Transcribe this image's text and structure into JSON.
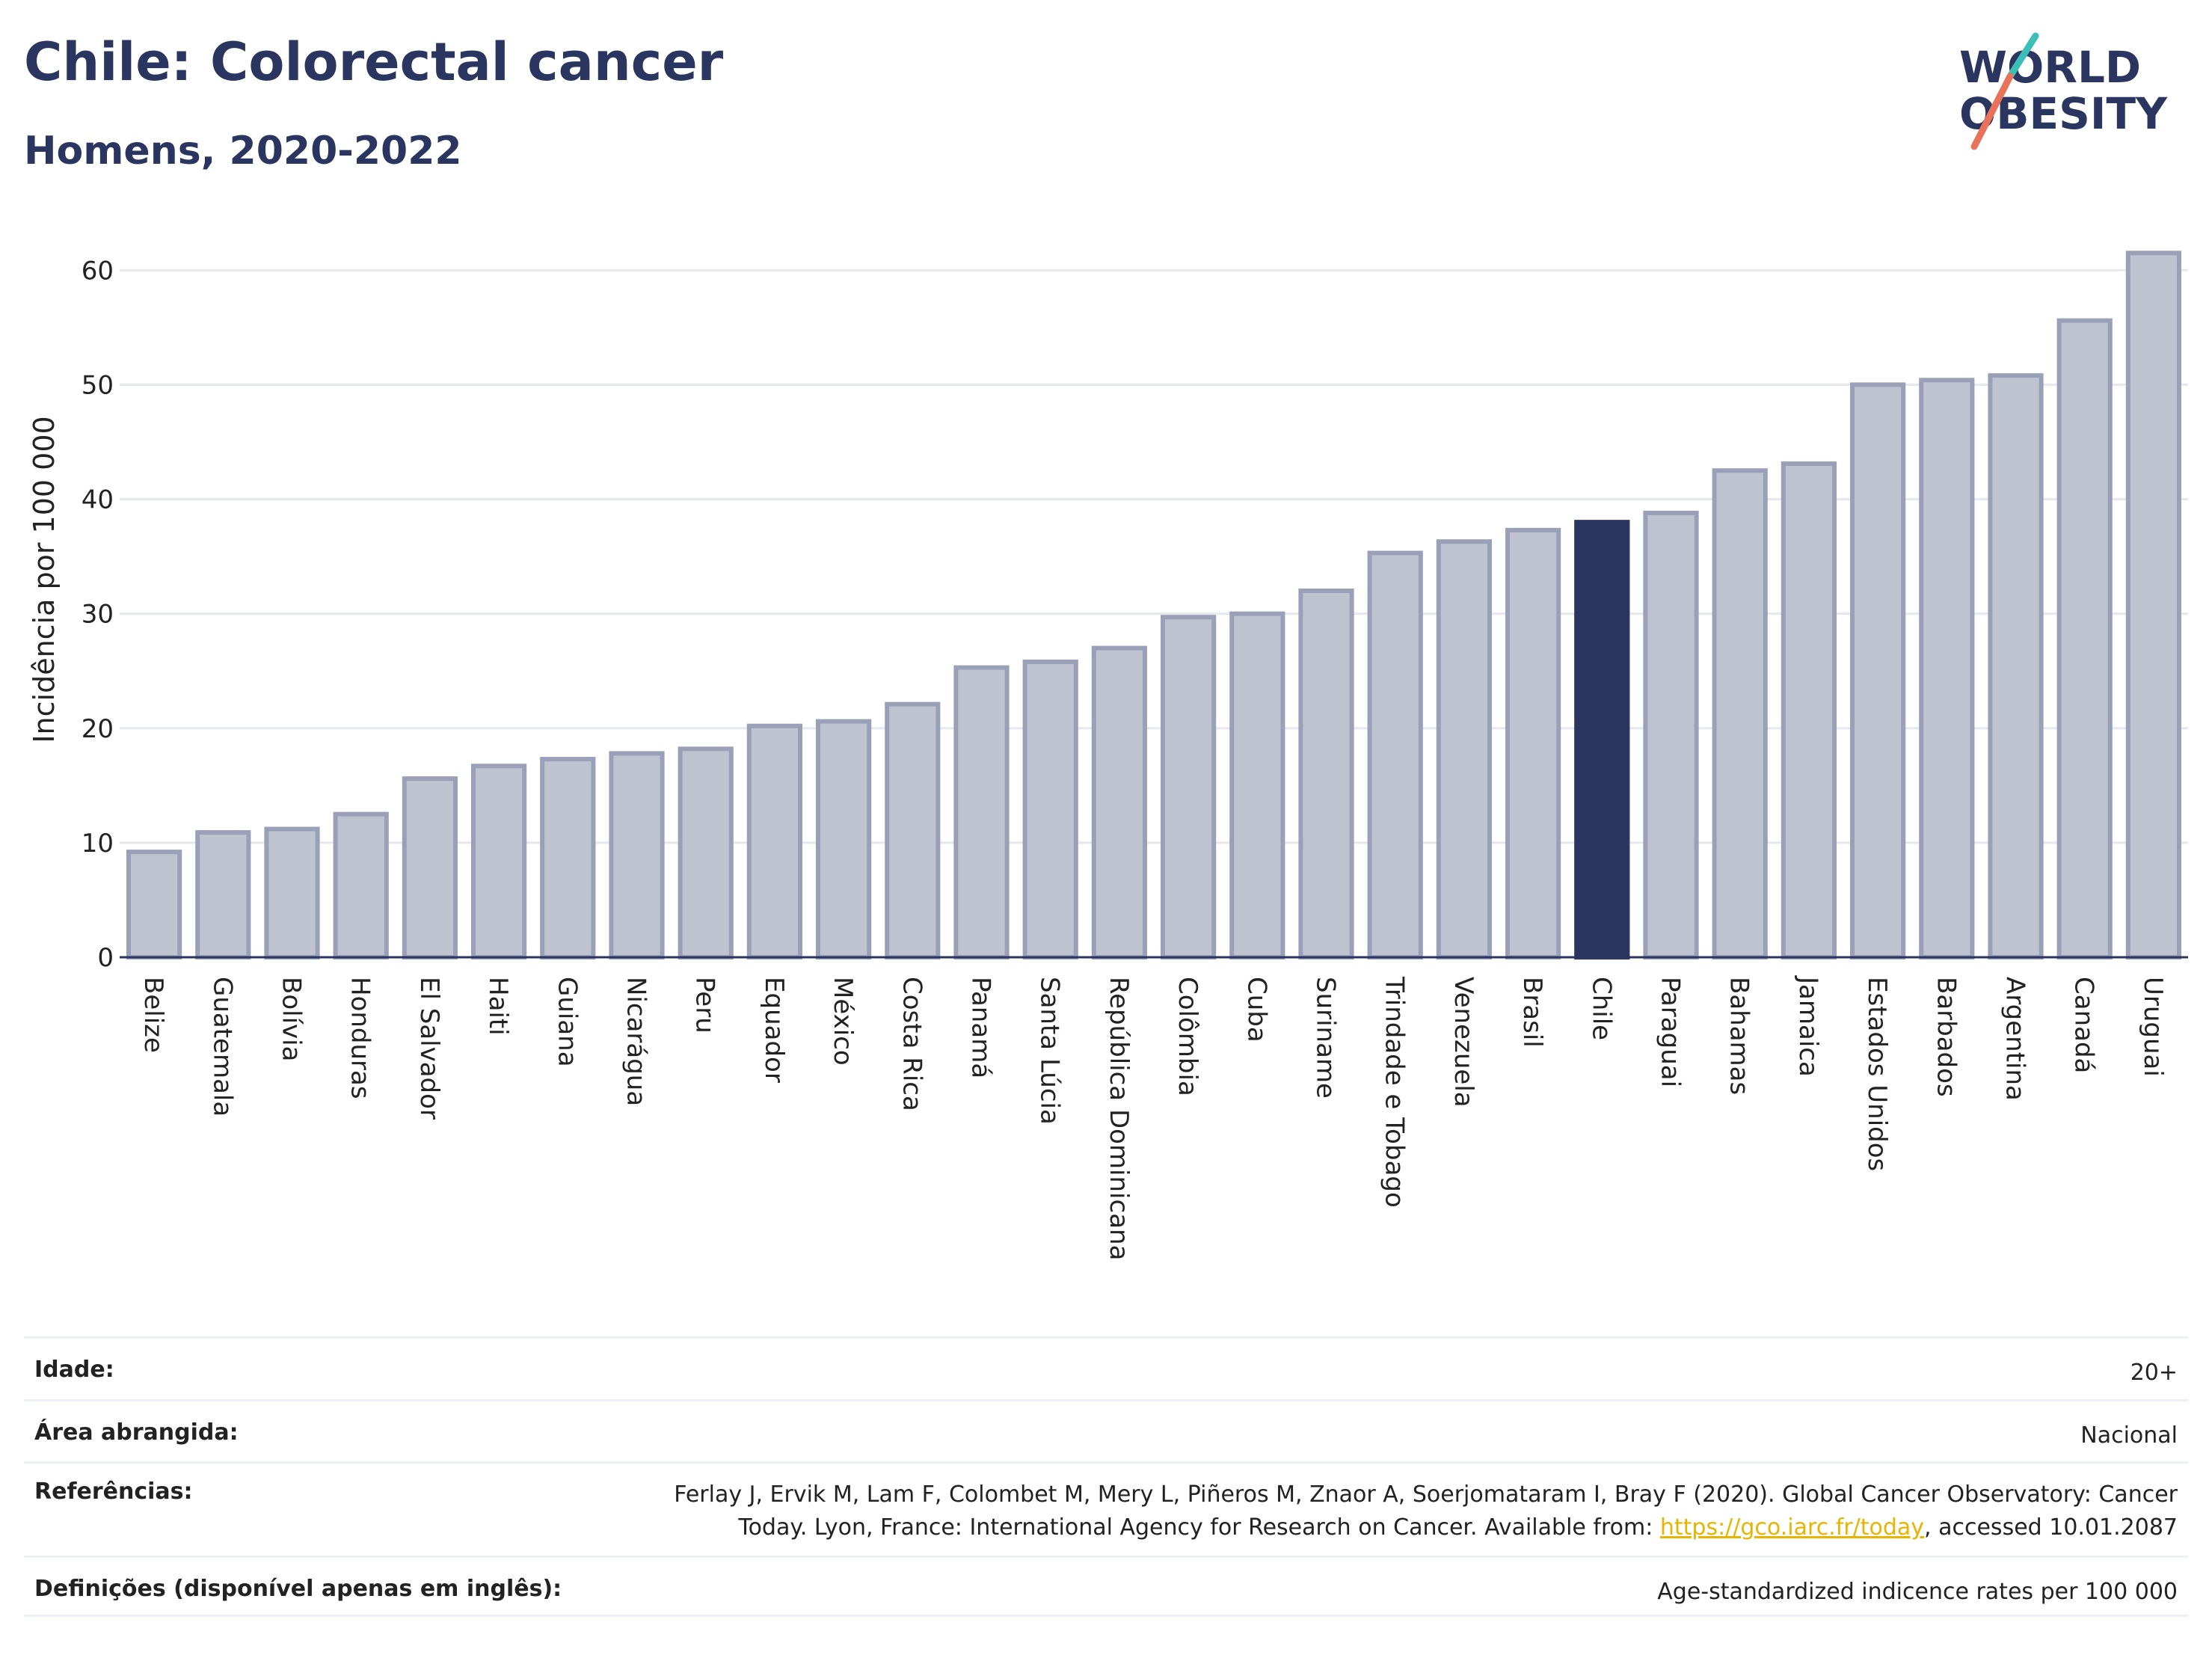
{
  "header": {
    "title": "Chile: Colorectal cancer",
    "subtitle": "Homens, 2020-2022"
  },
  "logo": {
    "line1": "WORLD",
    "line2": "OBESITY",
    "accent_color": "#e8735a",
    "accent_color_2": "#3dbfb8"
  },
  "colors": {
    "bar": "#bfc3d0",
    "bar_stroke": "#9aa0b8",
    "highlight": "#2a3560",
    "grid": "#e6e8ee"
  },
  "chart_data": {
    "type": "bar",
    "title": "Chile: Colorectal cancer",
    "subtitle": "Homens, 2020-2022",
    "ylabel": "Incidência por 100 000",
    "xlabel": "",
    "ylim": [
      0,
      64
    ],
    "yticks": [
      0,
      10,
      20,
      30,
      40,
      50,
      60
    ],
    "grid": true,
    "highlight": "Chile",
    "categories": [
      "Belize",
      "Guatemala",
      "Bolívia",
      "Honduras",
      "El Salvador",
      "Haiti",
      "Guiana",
      "Nicarágua",
      "Peru",
      "Equador",
      "México",
      "Costa Rica",
      "Panamá",
      "Santa Lúcia",
      "República Dominicana",
      "Colômbia",
      "Cuba",
      "Suriname",
      "Trindade e Tobago",
      "Venezuela",
      "Brasil",
      "Chile",
      "Paraguai",
      "Bahamas",
      "Jamaica",
      "Estados Unidos",
      "Barbados",
      "Argentina",
      "Canadá",
      "Uruguai"
    ],
    "values": [
      9.2,
      10.9,
      11.2,
      12.5,
      15.6,
      16.7,
      17.3,
      17.8,
      18.2,
      20.2,
      20.6,
      22.1,
      25.3,
      25.8,
      27.0,
      29.7,
      30.0,
      32.0,
      35.3,
      36.3,
      37.3,
      38.0,
      38.8,
      42.5,
      43.1,
      50.0,
      50.4,
      50.8,
      55.6,
      61.5
    ]
  },
  "info": {
    "rows": [
      {
        "key": "Idade:",
        "value": "20+"
      },
      {
        "key": "Área abrangida:",
        "value": "Nacional"
      },
      {
        "key": "Referências:",
        "value_line1": "Ferlay J, Ervik M, Lam F, Colombet M, Mery L, Piñeros M, Znaor A, Soerjomataram I, Bray F (2020). Global Cancer Observatory: Cancer",
        "value_pre": "Today. Lyon, France: International Agency for Research on Cancer. Available from: ",
        "link": "https://gco.iarc.fr/today",
        "value_post": ", accessed 10.01.2087"
      },
      {
        "key": "Definições (disponível apenas em inglês):",
        "value": "Age-standardized indicence rates per 100 000"
      }
    ]
  }
}
